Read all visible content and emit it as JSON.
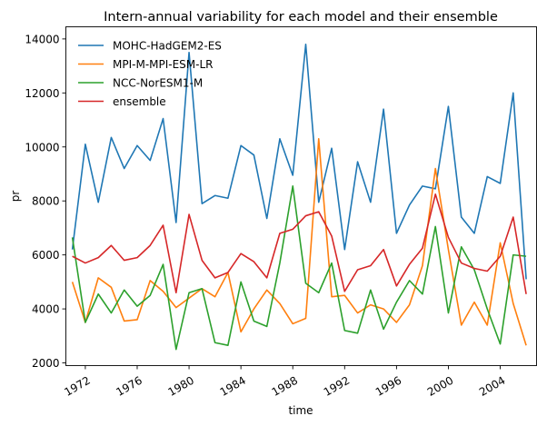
{
  "chart_data": {
    "type": "line",
    "title": "Intern-annual variability for each model and their ensemble",
    "xlabel": "time",
    "ylabel": "pr",
    "xlim": [
      1970.5,
      2006.8
    ],
    "ylim": [
      1900,
      14450
    ],
    "x_ticks": [
      1972,
      1976,
      1980,
      1984,
      1988,
      1992,
      1996,
      2000,
      2004
    ],
    "x_tick_labels": [
      "1972",
      "1976",
      "1980",
      "1984",
      "1988",
      "1992",
      "1996",
      "2000",
      "2004"
    ],
    "y_ticks": [
      2000,
      4000,
      6000,
      8000,
      10000,
      12000,
      14000
    ],
    "y_tick_labels": [
      "2000",
      "4000",
      "6000",
      "8000",
      "10000",
      "12000",
      "14000"
    ],
    "grid": false,
    "legend_position": "top-left",
    "x": [
      1971,
      1972,
      1973,
      1974,
      1975,
      1976,
      1977,
      1978,
      1979,
      1980,
      1981,
      1982,
      1983,
      1984,
      1985,
      1986,
      1987,
      1988,
      1989,
      1990,
      1991,
      1992,
      1993,
      1994,
      1995,
      1996,
      1997,
      1998,
      1999,
      2000,
      2001,
      2002,
      2003,
      2004,
      2005,
      2006
    ],
    "series": [
      {
        "name": "MOHC-HadGEM2-ES",
        "color": "#1f77b4",
        "values": [
          6200,
          10100,
          7950,
          10350,
          9200,
          10050,
          9500,
          11050,
          7200,
          13500,
          7900,
          8200,
          8100,
          10050,
          9700,
          7350,
          10300,
          8950,
          13800,
          7950,
          9950,
          6200,
          9450,
          7950,
          11400,
          6800,
          7850,
          8550,
          8450,
          11500,
          7400,
          6800,
          8900,
          8650,
          12000,
          5100
        ]
      },
      {
        "name": "MPI-M-MPI-ESM-LR",
        "color": "#ff7f0e",
        "values": [
          5000,
          3500,
          5150,
          4800,
          3550,
          3600,
          5050,
          4650,
          4050,
          4400,
          4750,
          4450,
          5350,
          3150,
          4000,
          4700,
          4200,
          3450,
          3650,
          10300,
          4450,
          4500,
          3850,
          4150,
          4000,
          3500,
          4150,
          5600,
          9200,
          6200,
          3400,
          4250,
          3400,
          6450,
          4200,
          2650
        ]
      },
      {
        "name": "NCC-NorESM1-M",
        "color": "#2ca02c",
        "values": [
          6650,
          3500,
          4550,
          3850,
          4700,
          4100,
          4500,
          5650,
          2500,
          4600,
          4750,
          2750,
          2650,
          5000,
          3550,
          3350,
          5700,
          8550,
          4950,
          4600,
          5700,
          3200,
          3100,
          4700,
          3250,
          4250,
          5050,
          4550,
          7050,
          3850,
          6300,
          5450,
          4000,
          2700,
          6000,
          5950
        ]
      },
      {
        "name": "ensemble",
        "color": "#d62728",
        "values": [
          5950,
          5700,
          5900,
          6350,
          5800,
          5900,
          6350,
          7100,
          4600,
          7500,
          5800,
          5150,
          5350,
          6050,
          5750,
          5150,
          6800,
          6950,
          7450,
          7600,
          6700,
          4650,
          5450,
          5600,
          6200,
          4850,
          5650,
          6250,
          8250,
          6650,
          5700,
          5500,
          5400,
          5950,
          7400,
          4550
        ]
      }
    ]
  }
}
